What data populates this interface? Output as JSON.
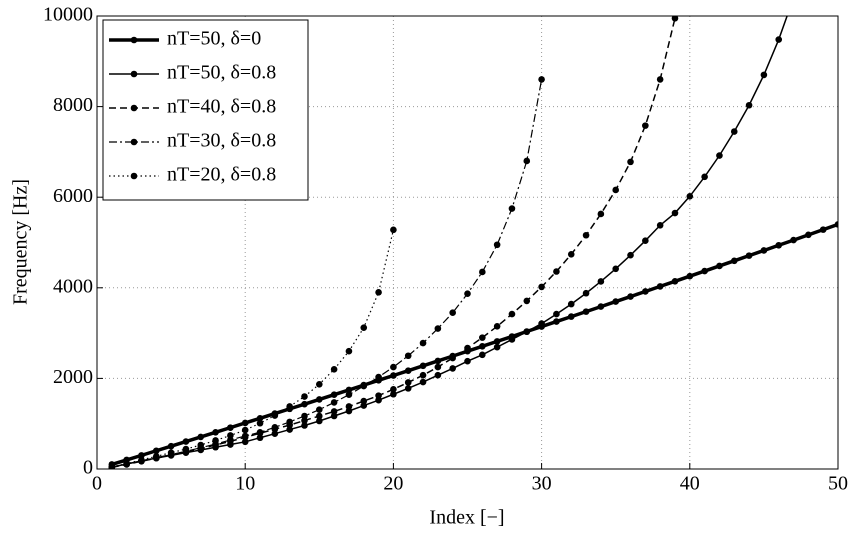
{
  "chart_data": {
    "type": "line",
    "xlabel": "Index [−]",
    "ylabel": "Frequency [Hz]",
    "x": [
      1,
      2,
      3,
      4,
      5,
      6,
      7,
      8,
      9,
      10,
      11,
      12,
      13,
      14,
      15,
      16,
      17,
      18,
      19,
      20,
      21,
      22,
      23,
      24,
      25,
      26,
      27,
      28,
      29,
      30,
      31,
      32,
      33,
      34,
      35,
      36,
      37,
      38,
      39,
      40,
      41,
      42,
      43,
      44,
      45,
      46,
      47,
      48,
      49,
      50
    ],
    "xlim": [
      0,
      50
    ],
    "xticks": [
      0,
      10,
      20,
      30,
      40,
      50
    ],
    "ylim": [
      0,
      10000
    ],
    "yticks": [
      0,
      2000,
      4000,
      6000,
      8000,
      10000
    ],
    "grid": true,
    "legend": "upper left",
    "series": [
      {
        "name": "nT=50, δ=0",
        "color": "#000000",
        "linestyle": "solid",
        "linewidth": 3.5,
        "values": [
          100,
          201,
          301,
          403,
          504,
          606,
          708,
          810,
          913,
          1016,
          1119,
          1223,
          1327,
          1431,
          1536,
          1641,
          1746,
          1852,
          1958,
          2064,
          2171,
          2277,
          2385,
          2492,
          2600,
          2708,
          2817,
          2925,
          3035,
          3144,
          3254,
          3364,
          3474,
          3585,
          3696,
          3807,
          3919,
          4031,
          4143,
          4256,
          4369,
          4482,
          4596,
          4710,
          4824,
          4939,
          5053,
          5169,
          5284,
          5400
        ]
      },
      {
        "name": "nT=50, δ=0.8",
        "color": "#000000",
        "linestyle": "solid",
        "linewidth": 1.5,
        "values": [
          40,
          110,
          180,
          240,
          300,
          360,
          420,
          480,
          540,
          600,
          690,
          780,
          870,
          960,
          1060,
          1170,
          1280,
          1400,
          1520,
          1650,
          1780,
          1920,
          2070,
          2220,
          2380,
          2520,
          2690,
          2860,
          3030,
          3210,
          3420,
          3640,
          3880,
          4140,
          4420,
          4720,
          5040,
          5380,
          5650,
          6020,
          6450,
          6920,
          7450,
          8030,
          8700,
          9480,
          10400,
          null,
          null,
          null
        ]
      },
      {
        "name": "nT=40, δ=0.8",
        "color": "#000000",
        "linestyle": "dashed",
        "linewidth": 1.5,
        "values": [
          35,
          100,
          170,
          240,
          310,
          380,
          450,
          530,
          610,
          700,
          790,
          880,
          970,
          1070,
          1170,
          1270,
          1380,
          1500,
          1620,
          1760,
          1910,
          2070,
          2250,
          2450,
          2670,
          2900,
          3150,
          3420,
          3710,
          4020,
          4360,
          4740,
          5160,
          5630,
          6160,
          6780,
          7580,
          8600,
          9950,
          null,
          null,
          null,
          null,
          null,
          null,
          null,
          null,
          null,
          null,
          null
        ]
      },
      {
        "name": "nT=30, δ=0.8",
        "color": "#000000",
        "linestyle": "dashdot",
        "linewidth": 1.2,
        "values": [
          40,
          110,
          180,
          250,
          320,
          390,
          470,
          550,
          640,
          730,
          810,
          920,
          1040,
          1170,
          1310,
          1470,
          1640,
          1830,
          2030,
          2250,
          2500,
          2780,
          3100,
          3450,
          3870,
          4350,
          4950,
          5750,
          6800,
          8600,
          null,
          null,
          null,
          null,
          null,
          null,
          null,
          null,
          null,
          null,
          null,
          null,
          null,
          null,
          null,
          null,
          null,
          null,
          null,
          null
        ]
      },
      {
        "name": "nT=20, δ=0.8",
        "color": "#000000",
        "linestyle": "dotted",
        "linewidth": 1.2,
        "values": [
          45,
          120,
          200,
          280,
          360,
          440,
          530,
          630,
          740,
          860,
          1010,
          1180,
          1380,
          1600,
          1870,
          2200,
          2600,
          3120,
          3900,
          5280,
          null,
          null,
          null,
          null,
          null,
          null,
          null,
          null,
          null,
          null,
          null,
          null,
          null,
          null,
          null,
          null,
          null,
          null,
          null,
          null,
          null,
          null,
          null,
          null,
          null,
          null,
          null,
          null,
          null,
          null
        ]
      }
    ]
  }
}
